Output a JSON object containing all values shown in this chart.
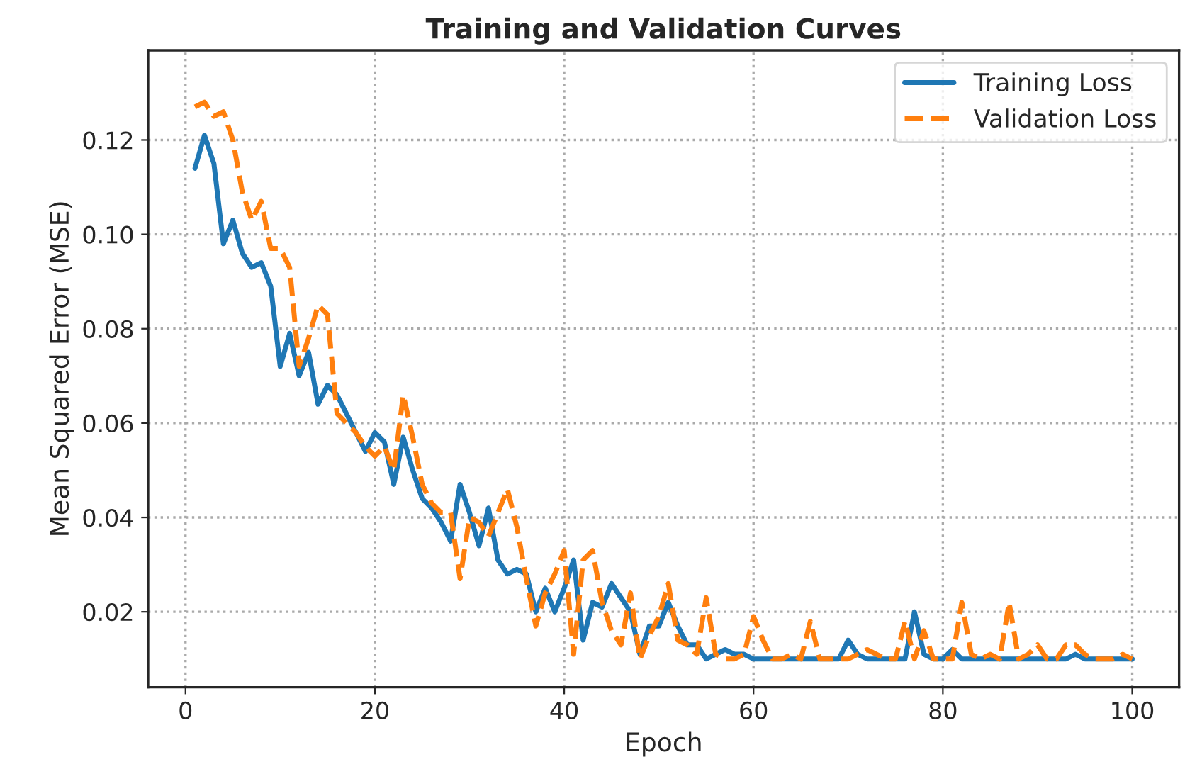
{
  "chart_data": {
    "type": "line",
    "title": "Training and Validation Curves",
    "xlabel": "Epoch",
    "ylabel": "Mean Squared Error (MSE)",
    "x": [
      1,
      2,
      3,
      4,
      5,
      6,
      7,
      8,
      9,
      10,
      11,
      12,
      13,
      14,
      15,
      16,
      17,
      18,
      19,
      20,
      21,
      22,
      23,
      24,
      25,
      26,
      27,
      28,
      29,
      30,
      31,
      32,
      33,
      34,
      35,
      36,
      37,
      38,
      39,
      40,
      41,
      42,
      43,
      44,
      45,
      46,
      47,
      48,
      49,
      50,
      51,
      52,
      53,
      54,
      55,
      56,
      57,
      58,
      59,
      60,
      61,
      62,
      63,
      64,
      65,
      66,
      67,
      68,
      69,
      70,
      71,
      72,
      73,
      74,
      75,
      76,
      77,
      78,
      79,
      80,
      81,
      82,
      83,
      84,
      85,
      86,
      87,
      88,
      89,
      90,
      91,
      92,
      93,
      94,
      95,
      96,
      97,
      98,
      99,
      100
    ],
    "series": [
      {
        "name": "Training Loss",
        "color": "#1f77b4",
        "line_style": "solid",
        "values": [
          0.114,
          0.121,
          0.115,
          0.098,
          0.103,
          0.096,
          0.093,
          0.094,
          0.089,
          0.072,
          0.079,
          0.07,
          0.075,
          0.064,
          0.068,
          0.066,
          0.062,
          0.058,
          0.054,
          0.058,
          0.056,
          0.047,
          0.057,
          0.05,
          0.044,
          0.042,
          0.039,
          0.035,
          0.047,
          0.041,
          0.034,
          0.042,
          0.031,
          0.028,
          0.029,
          0.028,
          0.02,
          0.025,
          0.02,
          0.025,
          0.031,
          0.014,
          0.022,
          0.021,
          0.026,
          0.023,
          0.02,
          0.011,
          0.017,
          0.017,
          0.022,
          0.017,
          0.013,
          0.013,
          0.01,
          0.011,
          0.012,
          0.011,
          0.011,
          0.01,
          0.01,
          0.01,
          0.01,
          0.01,
          0.01,
          0.01,
          0.01,
          0.01,
          0.01,
          0.014,
          0.011,
          0.01,
          0.01,
          0.01,
          0.01,
          0.01,
          0.02,
          0.011,
          0.01,
          0.01,
          0.012,
          0.01,
          0.01,
          0.01,
          0.01,
          0.01,
          0.01,
          0.01,
          0.01,
          0.01,
          0.01,
          0.01,
          0.01,
          0.011,
          0.01,
          0.01,
          0.01,
          0.01,
          0.01,
          0.01
        ]
      },
      {
        "name": "Validation Loss",
        "color": "#ff7f0e",
        "line_style": "dashed",
        "values": [
          0.127,
          0.128,
          0.125,
          0.126,
          0.12,
          0.109,
          0.103,
          0.107,
          0.097,
          0.097,
          0.093,
          0.072,
          0.078,
          0.085,
          0.083,
          0.062,
          0.06,
          0.058,
          0.055,
          0.053,
          0.055,
          0.05,
          0.066,
          0.057,
          0.047,
          0.043,
          0.041,
          0.041,
          0.027,
          0.04,
          0.039,
          0.036,
          0.041,
          0.046,
          0.038,
          0.027,
          0.017,
          0.024,
          0.028,
          0.033,
          0.011,
          0.031,
          0.033,
          0.022,
          0.016,
          0.013,
          0.024,
          0.01,
          0.015,
          0.019,
          0.026,
          0.014,
          0.013,
          0.011,
          0.023,
          0.011,
          0.01,
          0.01,
          0.011,
          0.019,
          0.014,
          0.01,
          0.01,
          0.011,
          0.01,
          0.018,
          0.01,
          0.01,
          0.01,
          0.01,
          0.011,
          0.012,
          0.011,
          0.01,
          0.01,
          0.018,
          0.01,
          0.016,
          0.01,
          0.01,
          0.01,
          0.022,
          0.011,
          0.01,
          0.011,
          0.01,
          0.022,
          0.01,
          0.011,
          0.013,
          0.01,
          0.01,
          0.013,
          0.013,
          0.011,
          0.01,
          0.01,
          0.01,
          0.011,
          0.01
        ]
      }
    ],
    "xlim": [
      -3.95,
      104.95
    ],
    "ylim": [
      0.004,
      0.139
    ],
    "xticks": [
      0,
      20,
      40,
      60,
      80,
      100
    ],
    "yticks": [
      {
        "value": 0.02,
        "label": "0.02"
      },
      {
        "value": 0.04,
        "label": "0.04"
      },
      {
        "value": 0.06,
        "label": "0.06"
      },
      {
        "value": 0.08,
        "label": "0.08"
      },
      {
        "value": 0.1,
        "label": "0.10"
      },
      {
        "value": 0.12,
        "label": "0.12"
      }
    ],
    "grid": true,
    "legend": "top right"
  }
}
